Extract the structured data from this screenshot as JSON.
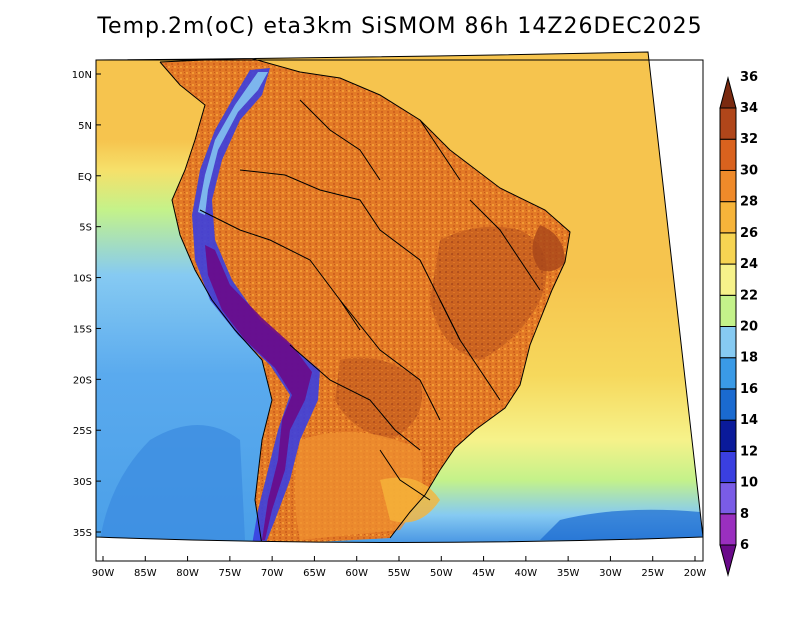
{
  "title": "Temp.2m(oC) eta3km SiSMOM 86h 14Z26DEC2025",
  "axes": {
    "lon_labels": [
      "90W",
      "85W",
      "80W",
      "75W",
      "70W",
      "65W",
      "60W",
      "55W",
      "50W",
      "45W",
      "40W",
      "35W",
      "30W",
      "25W",
      "20W"
    ],
    "lat_labels": [
      "10N",
      "5N",
      "EQ",
      "5S",
      "10S",
      "15S",
      "20S",
      "25S",
      "30S",
      "35S"
    ]
  },
  "colorbar": {
    "labels": [
      "6",
      "8",
      "10",
      "12",
      "14",
      "16",
      "18",
      "20",
      "22",
      "24",
      "26",
      "28",
      "30",
      "32",
      "34",
      "36"
    ],
    "colors": [
      "#6a0a8a",
      "#9a2fbf",
      "#7a5ce6",
      "#3a3fe0",
      "#0a1a9a",
      "#1a6ad0",
      "#3a9ae6",
      "#86caf2",
      "#c4f28a",
      "#f6f28a",
      "#f6d452",
      "#f6b43a",
      "#ef8a2a",
      "#d9621e",
      "#b0461a",
      "#7a2a10"
    ]
  },
  "colors": {
    "ocean_warm": "#f6c44e",
    "ocean_mid": "#f6e06a",
    "ocean_cool": "#c4f28a",
    "ocean_cold": "#86caf2",
    "ocean_colder": "#4a9fe8",
    "land_hot": "#ef8a2a",
    "land_very_hot": "#c85a1e",
    "andes_cold": "#6a1aa0",
    "andes_cool": "#2a2fd0"
  }
}
